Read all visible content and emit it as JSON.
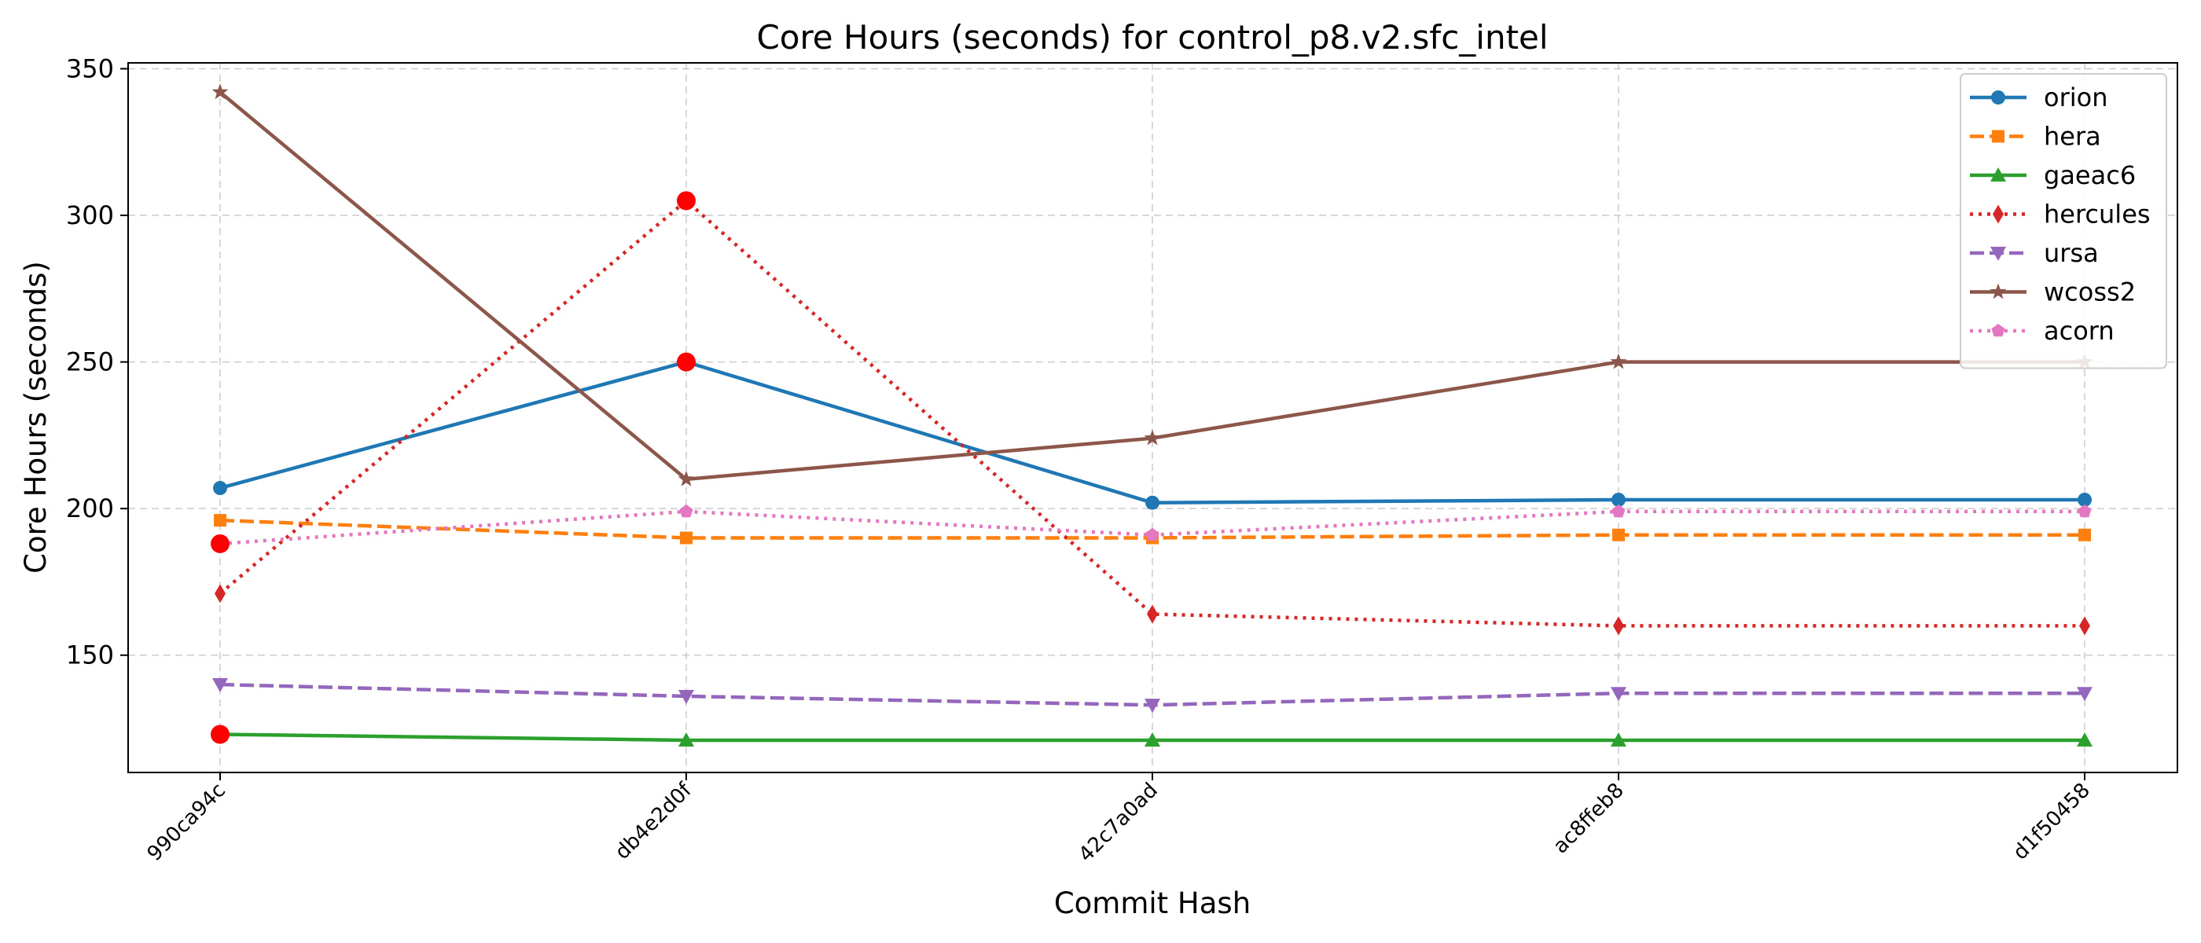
{
  "chart_data": {
    "type": "line",
    "title": "Core Hours (seconds) for control_p8.v2.sfc_intel",
    "xlabel": "Commit Hash",
    "ylabel": "Core Hours (seconds)",
    "categories": [
      "990ca94c",
      "db4e2d0f",
      "42c7a0ad",
      "ac8ffeb8",
      "d1f50458"
    ],
    "ylim": [
      110,
      352
    ],
    "yticks": [
      150,
      200,
      250,
      300,
      350
    ],
    "grid": true,
    "legend_position": "top-right",
    "series": [
      {
        "name": "orion",
        "values": [
          207,
          250,
          202,
          203,
          203
        ],
        "color": "#1f77b4",
        "linestyle": "solid",
        "marker": "circle"
      },
      {
        "name": "hera",
        "values": [
          196,
          190,
          190,
          191,
          191
        ],
        "color": "#ff7f0e",
        "linestyle": "dashed",
        "marker": "square"
      },
      {
        "name": "gaeac6",
        "values": [
          123,
          121,
          121,
          121,
          121
        ],
        "color": "#2ca02c",
        "linestyle": "solid",
        "marker": "triangle-up"
      },
      {
        "name": "hercules",
        "values": [
          171,
          305,
          164,
          160,
          160
        ],
        "color": "#d62728",
        "linestyle": "dotted",
        "marker": "thin-diamond"
      },
      {
        "name": "ursa",
        "values": [
          140,
          136,
          133,
          137,
          137
        ],
        "color": "#9467bd",
        "linestyle": "dashed",
        "marker": "triangle-down"
      },
      {
        "name": "wcoss2",
        "values": [
          342,
          210,
          224,
          250,
          250
        ],
        "color": "#8c564b",
        "linestyle": "solid",
        "marker": "star"
      },
      {
        "name": "acorn",
        "values": [
          188,
          199,
          191,
          199,
          199
        ],
        "color": "#e377c2",
        "linestyle": "dotted",
        "marker": "pentagon"
      }
    ],
    "highlights": [
      {
        "category": "990ca94c",
        "value": 188,
        "color": "#ff0000"
      },
      {
        "category": "990ca94c",
        "value": 123,
        "color": "#ff0000"
      },
      {
        "category": "db4e2d0f",
        "value": 305,
        "color": "#ff0000"
      },
      {
        "category": "db4e2d0f",
        "value": 250,
        "color": "#ff0000"
      }
    ]
  }
}
